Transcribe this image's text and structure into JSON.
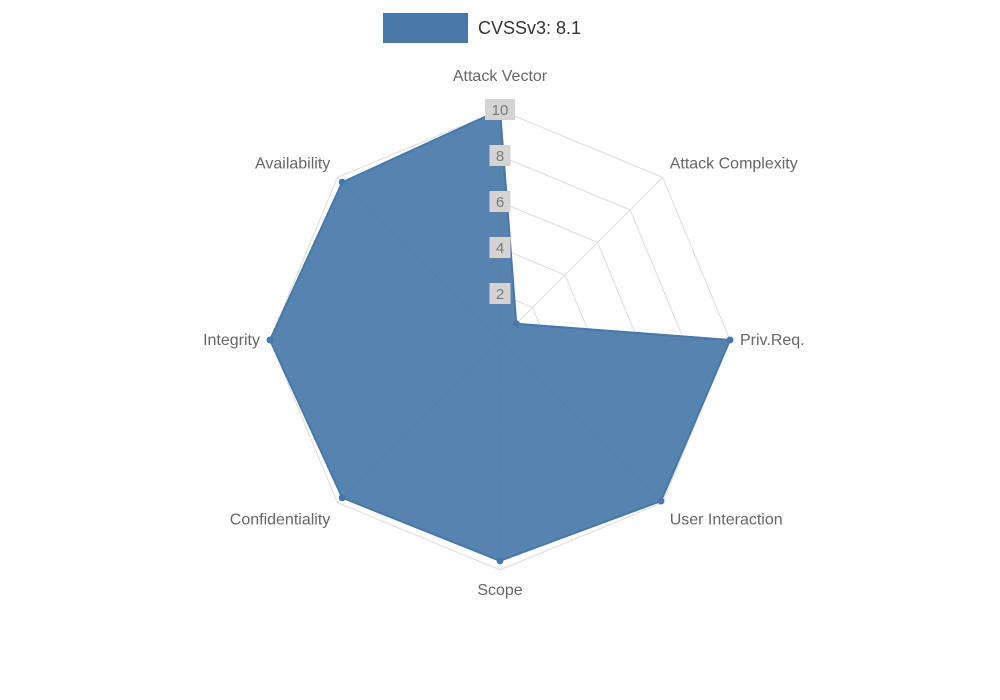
{
  "page": {
    "background": "#ffffff"
  },
  "legend": {
    "label": "CVSSv3: 8.1",
    "swatch_color": "#4878a8"
  },
  "chart_data": {
    "type": "radar",
    "title": "",
    "legend_position": "top",
    "categories": [
      "Attack Vector",
      "Attack Complexity",
      "Priv.Req.",
      "User Interaction",
      "Scope",
      "Confidentiality",
      "Integrity",
      "Availability"
    ],
    "series": [
      {
        "name": "CVSSv3: 8.1",
        "values": [
          10,
          1,
          10,
          9.9,
          9.6,
          9.7,
          10,
          9.7
        ],
        "color": "#4878a8",
        "fill_opacity": 0.92
      }
    ],
    "rlim": [
      0,
      10
    ],
    "ticks": [
      2,
      4,
      6,
      8,
      10
    ],
    "grid": true,
    "style": {
      "grid_color": "#dcdcdc",
      "label_color": "#666666",
      "tick_color": "#7a7a7a",
      "tick_backdrop": "#d4d4d4",
      "legend_text_color": "#333333"
    }
  }
}
